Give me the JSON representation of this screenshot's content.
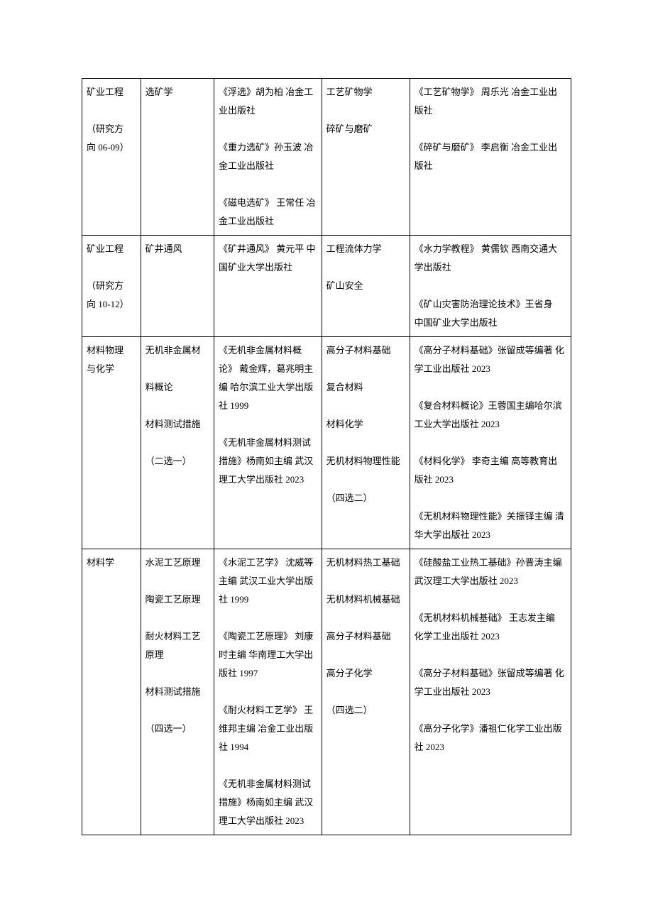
{
  "table": {
    "colwidths": [
      "12%",
      "15%",
      "22%",
      "18%",
      "33%"
    ],
    "rows": [
      {
        "c1": [
          "矿业工程",
          "",
          "（研究方",
          "向 06-09）"
        ],
        "c2": [
          "选矿学"
        ],
        "c3": [
          "《浮选》胡为柏 冶金工业出版社",
          "",
          "《重力选矿》孙玉波 冶金工业出版社",
          "",
          "《磁电选矿》 王常任 冶金工业出版社"
        ],
        "c4": [
          "工艺矿物学",
          "",
          "碎矿与磨矿"
        ],
        "c5": [
          "《工艺矿物学》 周乐光 冶金工业出版社",
          "",
          "《碎矿与磨矿》 李启衡 冶金工业出版社"
        ]
      },
      {
        "c1": [
          "矿业工程",
          "",
          "（研究方",
          "向 10-12）"
        ],
        "c2": [
          "矿井通风"
        ],
        "c3": [
          "《矿井通风》 黄元平 中国矿业大学出版社"
        ],
        "c4": [
          "工程流体力学",
          "",
          "矿山安全"
        ],
        "c5": [
          "《水力学教程》 黄儒钦 西南交通大学出版社",
          "",
          "《矿山灾害防治理论技术》王省身　中国矿业大学出版社"
        ]
      },
      {
        "c1": [
          "材料物理",
          "与化学"
        ],
        "c2": [
          "无机非金属材",
          "",
          "料概论",
          "",
          "材料测试措施",
          "",
          "（二选一）"
        ],
        "c3": [
          "《无机非金属材料概论》 戴金辉，葛兆明主编 哈尔滨工业大学出版社 1999",
          "",
          "《无机非金属材料测试措施》杨南如主编 武汉理工大学出版社 2023"
        ],
        "c4": [
          "高分子材料基础",
          "",
          "复合材料",
          "",
          "材料化学",
          "",
          "无机材料物理性能",
          "",
          "（四选二）"
        ],
        "c5": [
          "《高分子材料基础》张留成等编著 化学工业出版社 2023",
          "",
          "《复合材料概论》王蓉国主编哈尔滨工业大学出版社 2023",
          "",
          "《材料化学》 李奇主编 高等教育出版社 2023",
          "",
          "《无机材料物理性能》关振铎主编 清华大学出版社 2023"
        ]
      },
      {
        "c1": [
          "材料学"
        ],
        "c2": [
          "水泥工艺原理",
          "",
          "陶瓷工艺原理",
          "",
          "耐火材料工艺",
          "原理",
          "",
          "材料测试措施",
          "",
          "（四选一）"
        ],
        "c3": [
          "《水泥工艺学》 沈威等主编 武汉工业大学出版社 1999",
          "",
          "《陶瓷工艺原理》 刘康时主编 华南理工大学出版社 1997",
          "",
          "《耐火材料工艺学》 王维邦主编 冶金工业出版社 1994",
          "",
          "《无机非金属材料测试措施》杨南如主编 武汉理工大学出版社 2023"
        ],
        "c4": [
          "无机材料热工基础",
          "",
          "无机材料机械基础",
          "",
          "高分子材料基础",
          "",
          "高分子化学",
          "",
          "（四选二）"
        ],
        "c5": [
          "《硅酸盐工业热工基础》孙晋涛主编　武汉理工大学出版社 2023",
          "",
          "《无机材料机械基础》 王志发主编 化学工业出版社 2023",
          "",
          "《高分子材料基础》张留成等编著 化学工业出版社 2023",
          "",
          "《高分子化学》潘祖仁化学工业出版社 2023"
        ]
      }
    ]
  }
}
